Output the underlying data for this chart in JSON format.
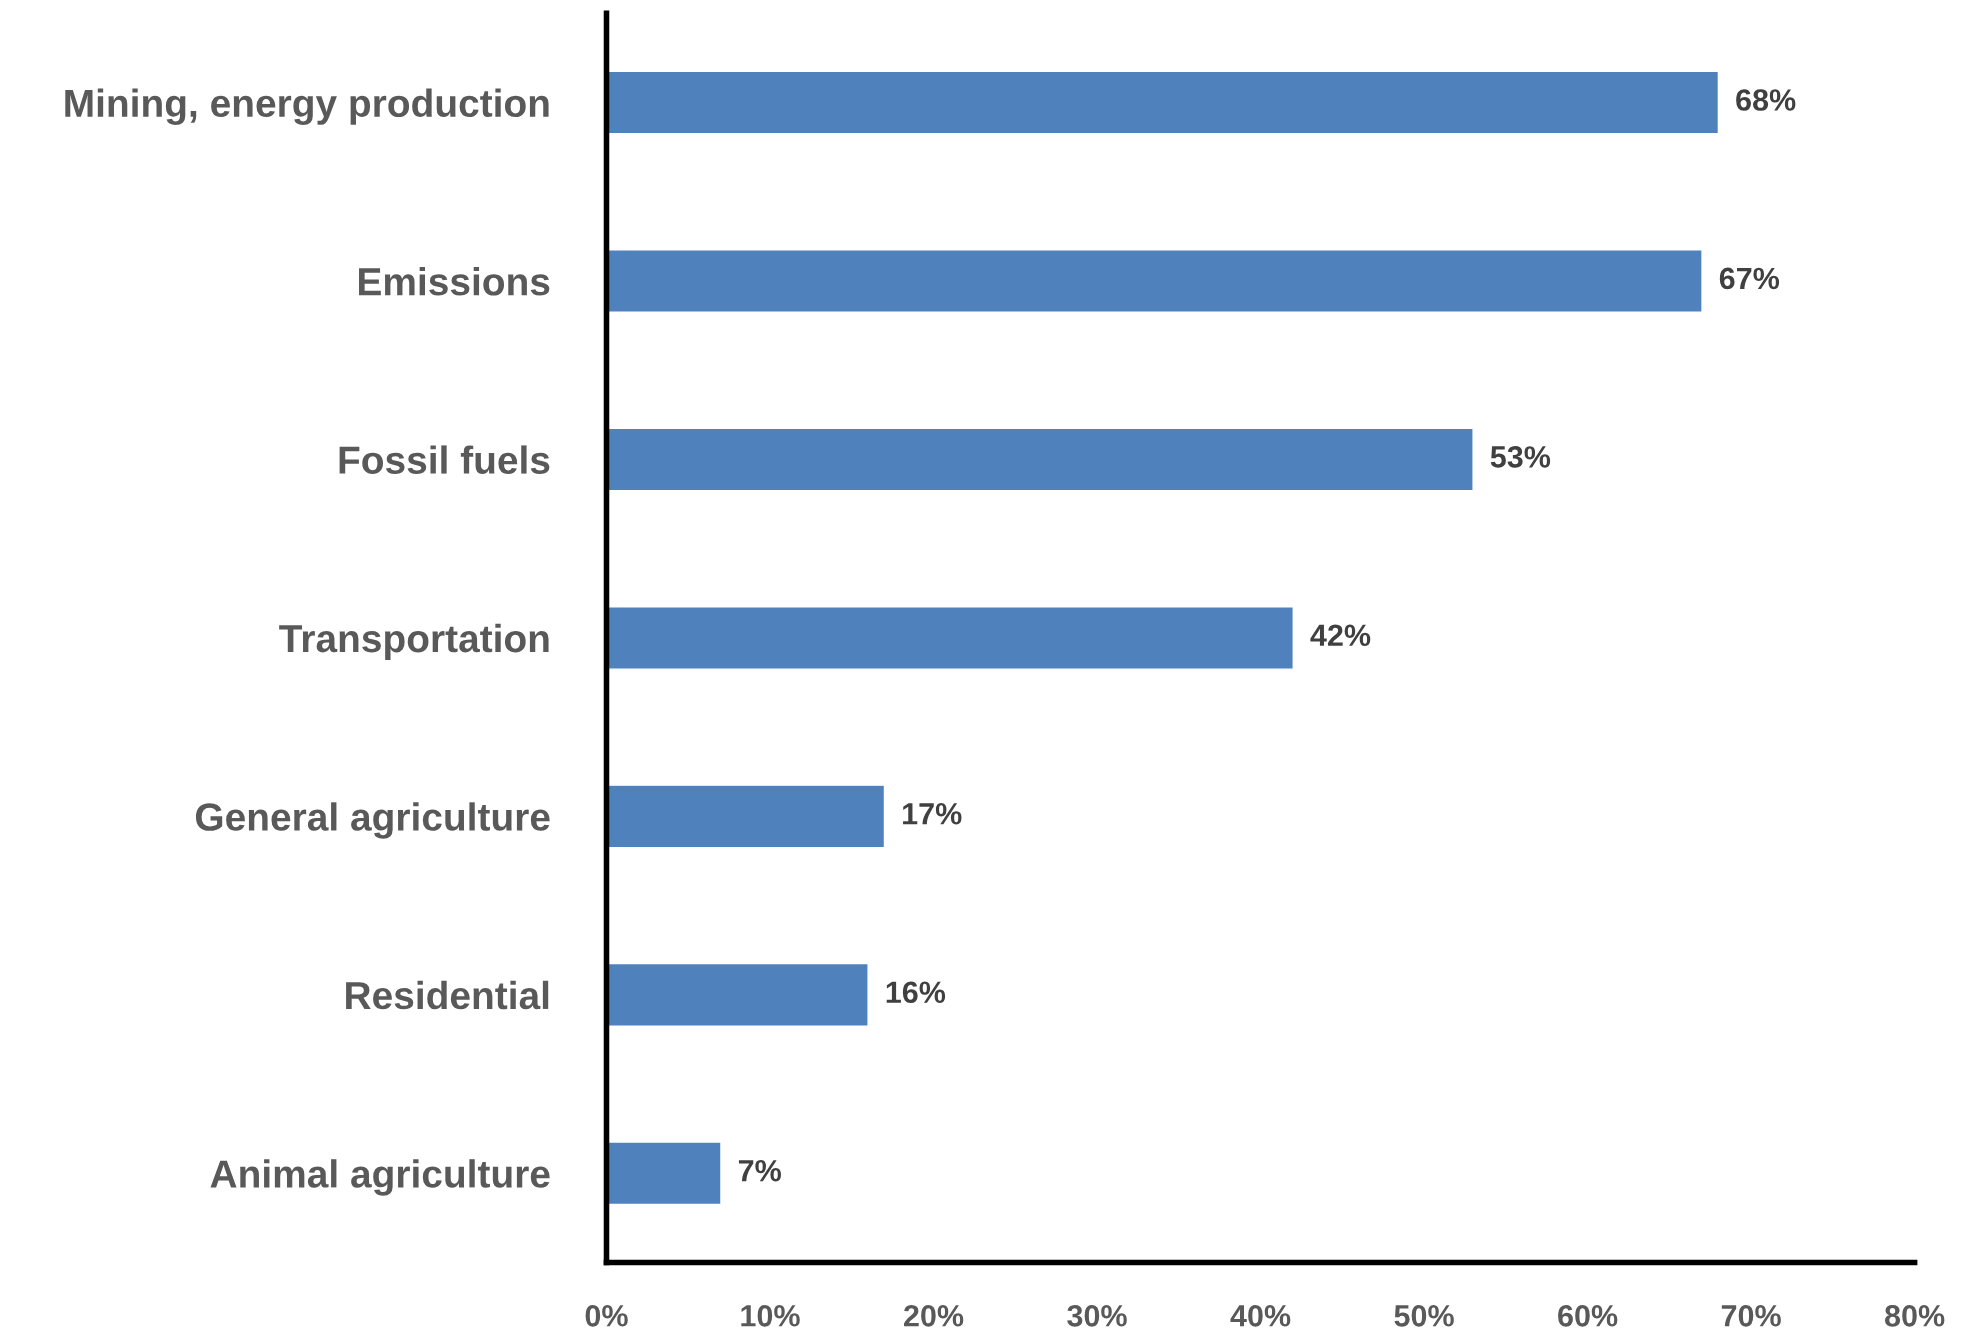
{
  "chart_data": {
    "type": "bar",
    "orientation": "horizontal",
    "categories": [
      "Mining, energy production",
      "Emissions",
      "Fossil fuels",
      "Transportation",
      "General agriculture",
      "Residential",
      "Animal agriculture"
    ],
    "values": [
      68,
      67,
      53,
      42,
      17,
      16,
      7
    ],
    "value_labels": [
      "68%",
      "67%",
      "53%",
      "42%",
      "17%",
      "16%",
      "7%"
    ],
    "color": "#4f81bd",
    "xlim": [
      0,
      80
    ],
    "xticks": [
      {
        "value": 0,
        "label": "0%"
      },
      {
        "value": 10,
        "label": "10%"
      },
      {
        "value": 20,
        "label": "20%"
      },
      {
        "value": 30,
        "label": "30%"
      },
      {
        "value": 40,
        "label": "40%"
      },
      {
        "value": 50,
        "label": "50%"
      },
      {
        "value": 60,
        "label": "60%"
      },
      {
        "value": 70,
        "label": "70%"
      },
      {
        "value": 80,
        "label": "80%"
      }
    ],
    "grid": false,
    "legend": false
  }
}
